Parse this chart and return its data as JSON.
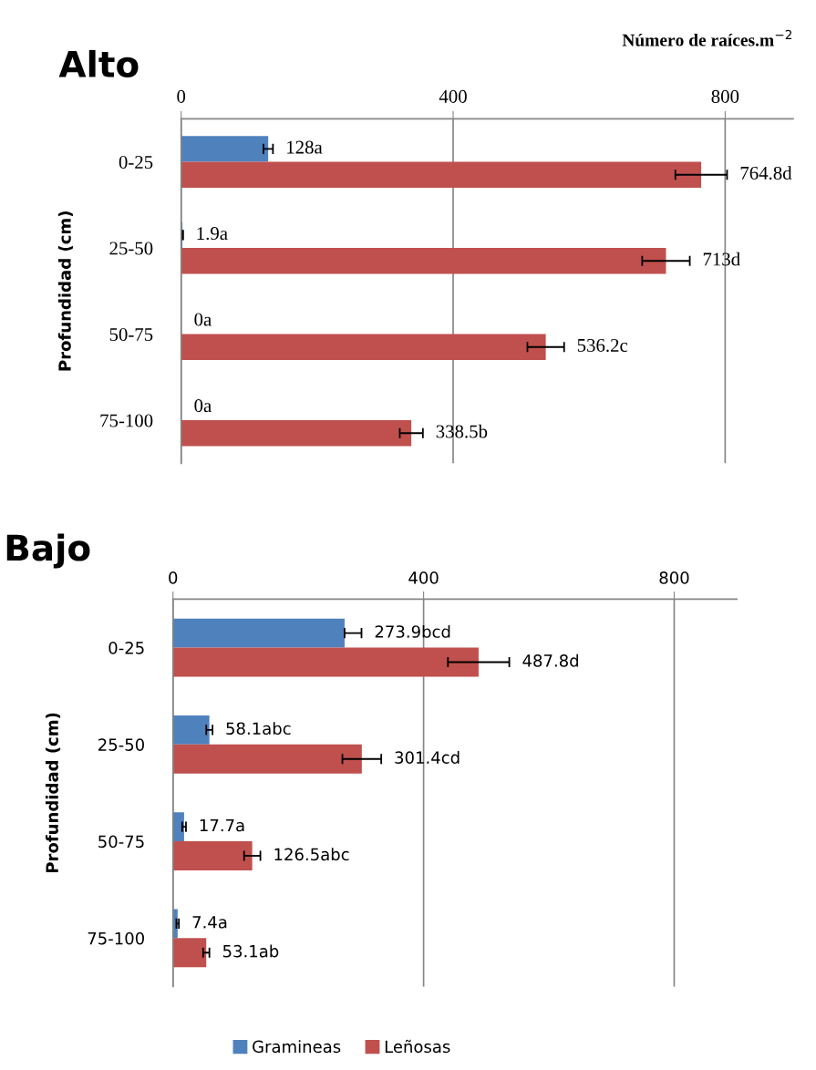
{
  "chart_data": [
    {
      "type": "bar",
      "orientation": "horizontal",
      "title": "Alto",
      "xlabel": "Número de raíces.m$^{−2}$",
      "ylabel": "Profundidad (cm)",
      "categories": [
        "0-25",
        "25-50",
        "50-75",
        "75-100"
      ],
      "xlim": [
        0,
        900
      ],
      "xticks": [
        0,
        400,
        800
      ],
      "grid": "x",
      "legend": false,
      "series": [
        {
          "color": "#4f81bd",
          "values": [
            128,
            1.9,
            0,
            0
          ],
          "errors": [
            7,
            1,
            null,
            null
          ],
          "value_labels": [
            "128a",
            "1.9a",
            "0a",
            "0a"
          ]
        },
        {
          "color": "#c0504d",
          "values": [
            764.8,
            713,
            536.2,
            338.5
          ],
          "errors": [
            38,
            35,
            27,
            17
          ],
          "value_labels": [
            "764.8d",
            "713d",
            "536.2c",
            "338.5b"
          ]
        }
      ]
    },
    {
      "type": "bar",
      "orientation": "horizontal",
      "title": "Bajo",
      "ylabel": "Profundidad (cm)",
      "categories": [
        "0-25",
        "25-50",
        "50-75",
        "75-100"
      ],
      "xlim": [
        0,
        900
      ],
      "xticks": [
        0,
        400,
        800
      ],
      "grid": "x",
      "legend": "bottom",
      "series": [
        {
          "name": "Gramineas",
          "color": "#4f81bd",
          "values": [
            273.9,
            58.1,
            17.7,
            7.4
          ],
          "errors": [
            [
              273.9,
              300.9
            ],
            5,
            3,
            2
          ],
          "value_labels": [
            "273.9bcd",
            "58.1abc",
            "17.7a",
            "7.4a"
          ]
        },
        {
          "name": "Leñosas",
          "color": "#c0504d",
          "values": [
            487.8,
            301.4,
            126.5,
            53.1
          ],
          "errors": [
            49,
            31,
            13,
            5
          ],
          "value_labels": [
            "487.8d",
            "301.4cd",
            "126.5abc",
            "53.1ab"
          ]
        }
      ]
    }
  ]
}
